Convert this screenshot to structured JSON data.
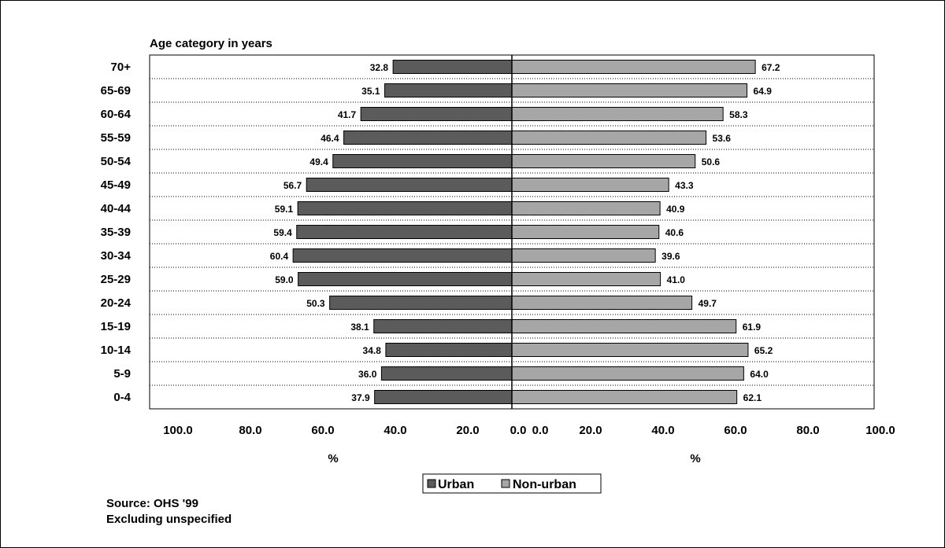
{
  "chart_data": {
    "type": "bar",
    "orientation": "horizontal",
    "layout": "diverging",
    "title": "Age category in years",
    "categories": [
      "70+",
      "65-69",
      "60-64",
      "55-59",
      "50-54",
      "45-49",
      "40-44",
      "35-39",
      "30-34",
      "25-29",
      "20-24",
      "15-19",
      "10-14",
      "5-9",
      "0-4"
    ],
    "series": [
      {
        "name": "Urban",
        "side": "left",
        "color": "#5b5b5b",
        "values": [
          32.8,
          35.1,
          41.7,
          46.4,
          49.4,
          56.7,
          59.1,
          59.4,
          60.4,
          59.0,
          50.3,
          38.1,
          34.8,
          36.0,
          37.9
        ],
        "labels": [
          "32.8",
          "35.1",
          "41.7",
          "46.4",
          "49.4",
          "56.7",
          "59.1",
          "59.4",
          "60.4",
          "59.0",
          "50.3",
          "38.1",
          "34.8",
          "36.0",
          "37.9"
        ]
      },
      {
        "name": "Non-urban",
        "side": "right",
        "color": "#a6a6a6",
        "values": [
          67.2,
          64.9,
          58.3,
          53.6,
          50.6,
          43.3,
          40.9,
          40.6,
          39.6,
          41.0,
          49.7,
          61.9,
          65.2,
          64.0,
          62.1
        ],
        "labels": [
          "67.2",
          "64.9",
          "58.3",
          "53.6",
          "50.6",
          "43.3",
          "40.9",
          "40.6",
          "39.6",
          "41.0",
          "49.7",
          "61.9",
          "65.2",
          "64.0",
          "62.1"
        ]
      }
    ],
    "xlim": [
      0,
      100
    ],
    "x_tick_labels_left": [
      "100.0",
      "80.0",
      "60.0",
      "40.0",
      "20.0",
      "0.0"
    ],
    "x_tick_labels_right": [
      "0.0",
      "20.0",
      "40.0",
      "60.0",
      "80.0",
      "100.0"
    ],
    "xlabel_left": "%",
    "xlabel_right": "%",
    "grid": "horizontal dotted",
    "legend_position": "bottom-center"
  },
  "notes": {
    "source": "Source: OHS '99",
    "exclusion": "Excluding unspecified"
  }
}
